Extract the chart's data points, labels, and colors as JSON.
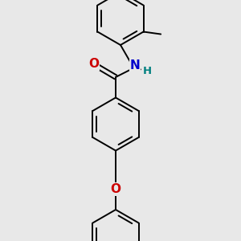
{
  "bg_color": "#e8e8e8",
  "bond_color": "#000000",
  "N_color": "#0000cc",
  "O_color": "#cc0000",
  "H_color": "#008080",
  "line_width": 1.4,
  "figsize": [
    3.0,
    3.0
  ],
  "dpi": 100,
  "xlim": [
    0,
    10
  ],
  "ylim": [
    0,
    10
  ],
  "r_ring": 1.1
}
